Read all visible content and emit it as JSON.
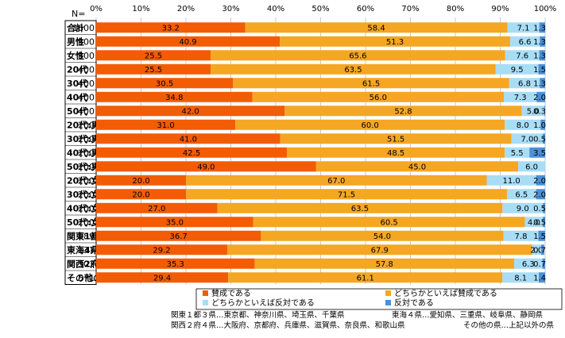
{
  "chart_data": {
    "type": "bar",
    "orientation": "horizontal",
    "stacked": true,
    "n_header": "N=",
    "xlim": [
      0,
      100
    ],
    "x_ticks": [
      "0%",
      "10%",
      "20%",
      "30%",
      "40%",
      "50%",
      "60%",
      "70%",
      "80%",
      "90%",
      "100%"
    ],
    "categories": [
      "合計",
      "男性",
      "女性",
      "20代",
      "30代",
      "40代",
      "50代",
      "20代:男性",
      "30代:男性",
      "40代:男性",
      "50代:男性",
      "20代:女性",
      "30代:女性",
      "40代:女性",
      "50代:女性",
      "関東1都3県",
      "東海4県",
      "関西2府4県",
      "その他の県"
    ],
    "n_values": [
      "1600",
      "800",
      "800",
      "400",
      "400",
      "400",
      "400",
      "200",
      "200",
      "200",
      "200",
      "200",
      "200",
      "200",
      "200",
      "589",
      "137",
      "303",
      "571"
    ],
    "series": [
      {
        "name": "賛成である",
        "color": "#f25c05",
        "values": [
          33.2,
          40.9,
          25.5,
          25.5,
          30.5,
          34.8,
          42.0,
          31.0,
          41.0,
          42.5,
          49.0,
          20.0,
          20.0,
          27.0,
          35.0,
          36.7,
          29.2,
          35.3,
          29.4
        ],
        "labels": [
          "33.2",
          "40.9",
          "25.5",
          "25.5",
          "30.5",
          "34.8",
          "42.0",
          "31.0",
          "41.0",
          "42.5",
          "49.0",
          "20.0",
          "20.0",
          "27.0",
          "35.0",
          "36.7",
          "29.2",
          "35.3",
          "29.4"
        ]
      },
      {
        "name": "どちらかといえば賛成である",
        "color": "#f5a623",
        "values": [
          58.4,
          51.3,
          65.6,
          63.5,
          61.5,
          56.0,
          52.8,
          60.0,
          51.5,
          48.5,
          45.0,
          67.0,
          71.5,
          63.5,
          60.5,
          54.0,
          67.9,
          57.8,
          61.1
        ],
        "labels": [
          "58.4",
          "51.3",
          "65.6",
          "63.5",
          "61.5",
          "56.0",
          "52.8",
          "60.0",
          "51.5",
          "48.5",
          "45.0",
          "67.0",
          "71.5",
          "63.5",
          "60.5",
          "54.0",
          "67.9",
          "57.8",
          "61.1"
        ]
      },
      {
        "name": "どちらかといえば反対である",
        "color": "#a8ddf5",
        "values": [
          7.1,
          6.6,
          7.6,
          9.5,
          6.8,
          7.3,
          5.0,
          8.0,
          7.0,
          5.5,
          6.0,
          11.0,
          6.5,
          9.0,
          4.0,
          7.8,
          2.0,
          6.3,
          8.1
        ],
        "labels": [
          "7.1",
          "6.6",
          "7.6",
          "9.5",
          "6.8",
          "7.3",
          "5.0",
          "8.0",
          "7.0",
          "5.5",
          "6.0",
          "11.0",
          "6.5",
          "9.0",
          "4.0",
          "7.8",
          "2.0",
          "6.3",
          "8.1"
        ]
      },
      {
        "name": "反対である",
        "color": "#4a90d9",
        "values": [
          1.3,
          1.3,
          1.3,
          1.5,
          1.3,
          2.0,
          0.3,
          1.0,
          0.5,
          3.5,
          0.0,
          2.0,
          2.0,
          0.5,
          0.5,
          1.5,
          0.7,
          0.7,
          1.4
        ],
        "labels": [
          "1.3",
          "1.3",
          "1.3",
          "1.5",
          "1.3",
          "2.0",
          "0.3",
          "1.0",
          "0.5",
          "3.5",
          "",
          "2.0",
          "2.0",
          "0.5",
          "0.5",
          "1.5",
          "0.7",
          "0.7",
          "1.4"
        ]
      }
    ],
    "legend_placement": "bottom"
  },
  "notes": {
    "kanto": "関東１都３県…東京都、神奈川県、埼玉県、千葉県",
    "tokai": "東海４県…愛知県、三重県、岐阜県、静岡県",
    "kansai": "関西２府４県…大阪府、京都府、兵庫県、滋賀県、奈良県、和歌山県",
    "other": "その他の県…上記以外の県"
  }
}
